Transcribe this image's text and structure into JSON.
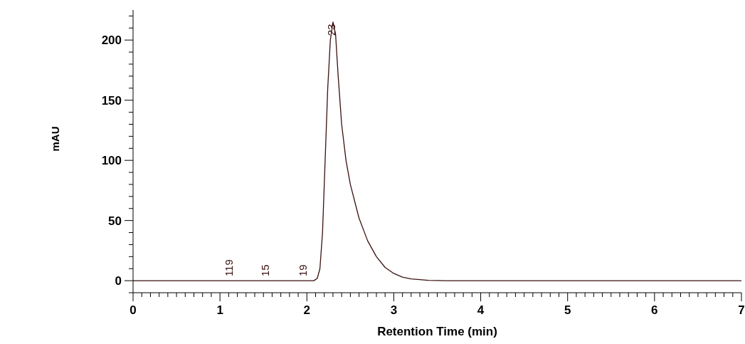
{
  "chart_data": {
    "type": "line",
    "xlabel": "Retention Time (min)",
    "ylabel": "mAU",
    "x": [
      0,
      2.08,
      2.12,
      2.15,
      2.18,
      2.21,
      2.24,
      2.27,
      2.3,
      2.33,
      2.36,
      2.4,
      2.45,
      2.5,
      2.6,
      2.7,
      2.8,
      2.9,
      3.0,
      3.1,
      3.2,
      3.4,
      3.6,
      7
    ],
    "series": [
      {
        "color": "#3a1010",
        "values": [
          0,
          0,
          2,
          10,
          40,
          100,
          160,
          200,
          215,
          205,
          170,
          130,
          100,
          80,
          52,
          33,
          20,
          11,
          6,
          3,
          1.5,
          0.3,
          0,
          0
        ]
      }
    ],
    "xlim": [
      0,
      7
    ],
    "ylim": [
      -10,
      225
    ],
    "xticks": [
      0,
      {
        "value": 0.1,
        "label": null
      },
      {
        "value": 0.2,
        "label": null
      },
      {
        "value": 0.3,
        "label": null
      },
      {
        "value": 0.4,
        "label": null
      },
      {
        "value": 0.5,
        "label": null
      },
      {
        "value": 0.6,
        "label": null
      },
      {
        "value": 0.7,
        "label": null
      },
      {
        "value": 0.8,
        "label": null
      },
      {
        "value": 0.9,
        "label": null
      },
      1,
      {
        "value": 1.1,
        "label": null
      },
      {
        "value": 1.2,
        "label": null
      },
      {
        "value": 1.3,
        "label": null
      },
      {
        "value": 1.4,
        "label": null
      },
      {
        "value": 1.5,
        "label": null
      },
      {
        "value": 1.6,
        "label": null
      },
      {
        "value": 1.7,
        "label": null
      },
      {
        "value": 1.8,
        "label": null
      },
      {
        "value": 1.9,
        "label": null
      },
      2,
      {
        "value": 2.1,
        "label": null
      },
      {
        "value": 2.2,
        "label": null
      },
      {
        "value": 2.3,
        "label": null
      },
      {
        "value": 2.4,
        "label": null
      },
      {
        "value": 2.5,
        "label": null
      },
      {
        "value": 2.6,
        "label": null
      },
      {
        "value": 2.7,
        "label": null
      },
      {
        "value": 2.8,
        "label": null
      },
      {
        "value": 2.9,
        "label": null
      },
      3,
      {
        "value": 3.1,
        "label": null
      },
      {
        "value": 3.2,
        "label": null
      },
      {
        "value": 3.3,
        "label": null
      },
      {
        "value": 3.4,
        "label": null
      },
      {
        "value": 3.5,
        "label": null
      },
      {
        "value": 3.6,
        "label": null
      },
      {
        "value": 3.7,
        "label": null
      },
      {
        "value": 3.8,
        "label": null
      },
      {
        "value": 3.9,
        "label": null
      },
      4,
      {
        "value": 4.1,
        "label": null
      },
      {
        "value": 4.2,
        "label": null
      },
      {
        "value": 4.3,
        "label": null
      },
      {
        "value": 4.4,
        "label": null
      },
      {
        "value": 4.5,
        "label": null
      },
      {
        "value": 4.6,
        "label": null
      },
      {
        "value": 4.7,
        "label": null
      },
      {
        "value": 4.8,
        "label": null
      },
      {
        "value": 4.9,
        "label": null
      },
      5,
      {
        "value": 5.1,
        "label": null
      },
      {
        "value": 5.2,
        "label": null
      },
      {
        "value": 5.3,
        "label": null
      },
      {
        "value": 5.4,
        "label": null
      },
      {
        "value": 5.5,
        "label": null
      },
      {
        "value": 5.6,
        "label": null
      },
      {
        "value": 5.7,
        "label": null
      },
      {
        "value": 5.8,
        "label": null
      },
      {
        "value": 5.9,
        "label": null
      },
      6,
      {
        "value": 6.1,
        "label": null
      },
      {
        "value": 6.2,
        "label": null
      },
      {
        "value": 6.3,
        "label": null
      },
      {
        "value": 6.4,
        "label": null
      },
      {
        "value": 6.5,
        "label": null
      },
      {
        "value": 6.6,
        "label": null
      },
      {
        "value": 6.7,
        "label": null
      },
      {
        "value": 6.8,
        "label": null
      },
      {
        "value": 6.9,
        "label": null
      },
      7
    ],
    "yticks": [
      {
        "value": -10,
        "label": null
      },
      0,
      {
        "value": 10,
        "label": null
      },
      {
        "value": 20,
        "label": null
      },
      {
        "value": 30,
        "label": null
      },
      {
        "value": 40,
        "label": null
      },
      50,
      {
        "value": 60,
        "label": null
      },
      {
        "value": 70,
        "label": null
      },
      {
        "value": 80,
        "label": null
      },
      {
        "value": 90,
        "label": null
      },
      100,
      {
        "value": 110,
        "label": null
      },
      {
        "value": 120,
        "label": null
      },
      {
        "value": 130,
        "label": null
      },
      {
        "value": 140,
        "label": null
      },
      150,
      {
        "value": 160,
        "label": null
      },
      {
        "value": 170,
        "label": null
      },
      {
        "value": 180,
        "label": null
      },
      {
        "value": 190,
        "label": null
      },
      200,
      {
        "value": 210,
        "label": null
      },
      {
        "value": 220,
        "label": null
      }
    ],
    "annotations": [
      {
        "text": "119",
        "x": 1.1,
        "y": 0
      },
      {
        "text": "15",
        "x": 1.52,
        "y": 0
      },
      {
        "text": "19",
        "x": 1.95,
        "y": 0
      },
      {
        "text": "23",
        "x": 2.28,
        "y": 200
      }
    ],
    "grid": false,
    "marker": "none",
    "line_style": "solid"
  }
}
